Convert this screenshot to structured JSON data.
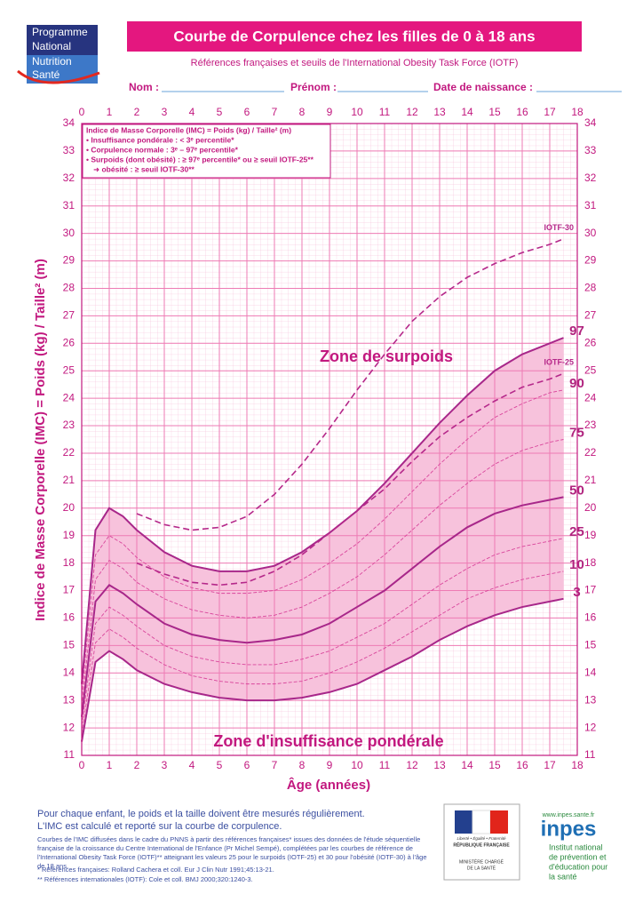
{
  "logo": {
    "line1": "Programme",
    "line2": "National",
    "line3": "Nutrition",
    "line4": "Santé"
  },
  "header": {
    "title": "Courbe de Corpulence chez les filles de 0 à 18 ans",
    "subtitle": "Références françaises et seuils de l'International Obesity Task Force (IOTF)"
  },
  "form": {
    "name": "Nom :",
    "first_name": "Prénom :",
    "birth_date": "Date de naissance :"
  },
  "chart_data": {
    "type": "line",
    "x_label": "Âge (années)",
    "y_label": "Indice de Masse Corporelle (IMC) = Poids (kg) / Taille² (m)",
    "xlim": [
      0,
      18
    ],
    "ylim": [
      11,
      34
    ],
    "xticks": [
      0,
      1,
      2,
      3,
      4,
      5,
      6,
      7,
      8,
      9,
      10,
      11,
      12,
      13,
      14,
      15,
      16,
      17,
      18
    ],
    "yticks": [
      11,
      12,
      13,
      14,
      15,
      16,
      17,
      18,
      19,
      20,
      21,
      22,
      23,
      24,
      25,
      26,
      27,
      28,
      29,
      30,
      31,
      32,
      33,
      34
    ],
    "grid": true,
    "grid_color": "#ee7bb4",
    "band_color": "#f7c2dc",
    "x": [
      0,
      0.5,
      1,
      1.5,
      2,
      3,
      4,
      5,
      6,
      7,
      8,
      9,
      10,
      11,
      12,
      13,
      14,
      15,
      16,
      17,
      17.5
    ],
    "series": [
      {
        "name": "3",
        "color": "#a8278a",
        "style": "solid",
        "values": [
          11.5,
          14.4,
          14.8,
          14.5,
          14.1,
          13.6,
          13.3,
          13.1,
          13.0,
          13.0,
          13.1,
          13.3,
          13.6,
          14.1,
          14.6,
          15.2,
          15.7,
          16.1,
          16.4,
          16.6,
          16.7
        ]
      },
      {
        "name": "10",
        "color": "#d9469c",
        "style": "dotted",
        "values": [
          11.8,
          15.1,
          15.6,
          15.3,
          14.9,
          14.3,
          13.9,
          13.7,
          13.6,
          13.6,
          13.7,
          14.0,
          14.4,
          14.9,
          15.5,
          16.1,
          16.7,
          17.1,
          17.4,
          17.6,
          17.7
        ]
      },
      {
        "name": "25",
        "color": "#d9469c",
        "style": "dotted",
        "values": [
          12.1,
          15.8,
          16.4,
          16.1,
          15.7,
          15.0,
          14.6,
          14.4,
          14.3,
          14.3,
          14.5,
          14.8,
          15.3,
          15.8,
          16.5,
          17.2,
          17.8,
          18.3,
          18.6,
          18.8,
          18.9
        ]
      },
      {
        "name": "50",
        "color": "#a8278a",
        "style": "solid",
        "values": [
          12.4,
          16.6,
          17.2,
          16.9,
          16.5,
          15.8,
          15.4,
          15.2,
          15.1,
          15.2,
          15.4,
          15.8,
          16.4,
          17.0,
          17.8,
          18.6,
          19.3,
          19.8,
          20.1,
          20.3,
          20.4
        ]
      },
      {
        "name": "75",
        "color": "#d9469c",
        "style": "dotted",
        "values": [
          12.8,
          17.4,
          18.1,
          17.8,
          17.3,
          16.7,
          16.3,
          16.1,
          16.0,
          16.1,
          16.4,
          16.9,
          17.5,
          18.3,
          19.2,
          20.1,
          20.9,
          21.6,
          22.1,
          22.4,
          22.5
        ]
      },
      {
        "name": "90",
        "color": "#d9469c",
        "style": "dotted",
        "values": [
          13.2,
          18.3,
          19.0,
          18.7,
          18.2,
          17.5,
          17.1,
          16.9,
          16.9,
          17.0,
          17.4,
          18.0,
          18.7,
          19.6,
          20.6,
          21.6,
          22.5,
          23.3,
          23.8,
          24.2,
          24.3
        ]
      },
      {
        "name": "97",
        "color": "#a8278a",
        "style": "solid",
        "values": [
          13.6,
          19.2,
          20.0,
          19.7,
          19.2,
          18.4,
          17.9,
          17.7,
          17.7,
          17.9,
          18.4,
          19.1,
          19.9,
          20.9,
          22.0,
          23.1,
          24.1,
          25.0,
          25.6,
          26.0,
          26.2
        ]
      },
      {
        "name": "IOTF-25",
        "color": "#b5288a",
        "style": "dashed",
        "values": [
          null,
          null,
          null,
          null,
          18.0,
          17.6,
          17.3,
          17.2,
          17.3,
          17.7,
          18.3,
          19.1,
          19.9,
          20.7,
          21.7,
          22.6,
          23.3,
          23.9,
          24.4,
          24.7,
          24.9
        ]
      },
      {
        "name": "IOTF-30",
        "color": "#b5288a",
        "style": "dashed",
        "values": [
          null,
          null,
          null,
          null,
          19.8,
          19.4,
          19.2,
          19.3,
          19.7,
          20.5,
          21.6,
          22.9,
          24.3,
          25.6,
          26.8,
          27.7,
          28.4,
          28.9,
          29.3,
          29.6,
          29.8
        ]
      }
    ],
    "legend_box": [
      "Indice de Masse Corporelle (IMC) = Poids (kg) / Taille² (m)",
      "• Insuffisance pondérale : < 3ᵉ percentile*",
      "• Corpulence normale : 3ᵉ – 97ᵉ percentile*",
      "• Surpoids (dont obésité) : ≥ 97ᵉ percentile* ou ≥ seuil IOTF-25**",
      "➜ obésité : ≥ seuil IOTF-30**"
    ],
    "zone_over": "Zone de surpoids",
    "zone_under": "Zone d'insuffisance pondérale"
  },
  "footer": {
    "advice1": "Pour chaque enfant, le poids et la taille doivent être mesurés régulièrement.",
    "advice2": "L'IMC est calculé et reporté sur la courbe de corpulence.",
    "note": "Courbes de l'IMC diffusées dans le cadre du PNNS à partir des références françaises* issues des données de l'étude séquentielle française de la croissance du Centre International de l'Enfance (Pr Michel Sempé), complétées par les courbes de référence de l'International Obesity Task Force (IOTF)** atteignant les valeurs 25 pour le surpoids (IOTF-25) et 30 pour l'obésité (IOTF-30) à l'âge de 18 ans.",
    "ref1": "* Références françaises: Rolland Cachera et coll. Eur J Clin Nutr 1991;45:13-21.",
    "ref2": "** Références internationales (IOTF): Cole et coll. BMJ 2000;320:1240-3."
  },
  "ministry": {
    "motto": "Liberté • Égalité • Fraternité",
    "republic": "RÉPUBLIQUE FRANÇAISE",
    "line1": "MINISTÈRE CHARGÉ",
    "line2": "DE LA SANTÉ"
  },
  "inpes": {
    "url": "www.inpes.sante.fr",
    "name": "inpes",
    "line1": "Institut national",
    "line2": "de prévention et",
    "line3": "d'éducation pour",
    "line4": "la santé"
  }
}
